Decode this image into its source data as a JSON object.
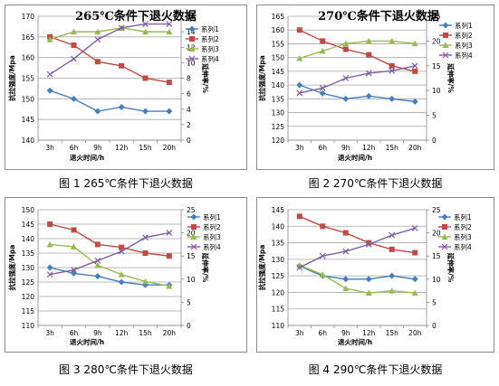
{
  "captions": [
    "图 1  265℃条件下退火数据",
    "图 2  270℃条件下退火数据",
    "图 3    280℃条件下退火数据",
    "图 4  290℃条件下退火数据"
  ],
  "colors": {
    "s1": "#4a7ebb",
    "s2": "#be4b48",
    "s3": "#98b954",
    "s4": "#7d60a0"
  },
  "chart_data": [
    {
      "type": "line",
      "title": "265℃条件下退火数据",
      "xlabel": "退火时间/h",
      "ylabel": "抗拉强度/Mpa",
      "y2label": "延伸率/%",
      "categories": [
        "3h",
        "6h",
        "9h",
        "12h",
        "15h",
        "20h"
      ],
      "ylim": [
        140,
        170
      ],
      "yticks": [
        140,
        145,
        150,
        155,
        160,
        165,
        170
      ],
      "y2lim": [
        0,
        16
      ],
      "y2ticks": [
        0,
        2,
        4,
        6,
        8,
        10,
        12,
        14,
        16
      ],
      "legend_position": "right",
      "series": [
        {
          "name": "系列1",
          "axis": "left",
          "values": [
            152,
            150,
            147,
            148,
            147,
            147
          ]
        },
        {
          "name": "系列2",
          "axis": "left",
          "values": [
            165,
            163,
            159,
            158,
            155,
            154
          ]
        },
        {
          "name": "系列3",
          "axis": "right",
          "values": [
            13,
            14,
            14,
            14.5,
            14,
            14
          ]
        },
        {
          "name": "系列4",
          "axis": "right",
          "values": [
            8.5,
            10.5,
            13,
            14.5,
            15,
            15
          ]
        }
      ]
    },
    {
      "type": "line",
      "title": "270℃条件下退火数据",
      "xlabel": "退火时间/h",
      "ylabel": "抗拉强度/Mpa",
      "y2label": "延伸率/%",
      "categories": [
        "3h",
        "6h",
        "9h",
        "12h",
        "15h",
        "20h"
      ],
      "ylim": [
        120,
        165
      ],
      "yticks": [
        120,
        125,
        130,
        135,
        140,
        145,
        150,
        155,
        160,
        165
      ],
      "y2lim": [
        0,
        25
      ],
      "y2ticks": [
        0,
        5,
        10,
        15,
        20,
        25
      ],
      "legend_position": "right",
      "series": [
        {
          "name": "系列1",
          "axis": "left",
          "values": [
            140,
            137,
            135,
            136,
            135,
            134
          ]
        },
        {
          "name": "系列2",
          "axis": "left",
          "values": [
            160,
            156,
            153,
            151,
            147,
            145
          ]
        },
        {
          "name": "系列3",
          "axis": "right",
          "values": [
            16.5,
            18,
            19.5,
            20,
            20,
            19.5
          ]
        },
        {
          "name": "系列4",
          "axis": "right",
          "values": [
            9.5,
            10.5,
            12.5,
            13.5,
            14,
            15
          ]
        }
      ]
    },
    {
      "type": "line",
      "title": "",
      "xlabel": "退火时间/h",
      "ylabel": "抗拉强度/Mpa",
      "y2label": "延伸率/%",
      "categories": [
        "3h",
        "6h",
        "9h",
        "12h",
        "15h",
        "20h"
      ],
      "ylim": [
        110,
        150
      ],
      "yticks": [
        110,
        115,
        120,
        125,
        130,
        135,
        140,
        145,
        150
      ],
      "y2lim": [
        0,
        25
      ],
      "y2ticks": [
        0,
        5,
        10,
        15,
        20,
        25
      ],
      "legend_position": "right",
      "series": [
        {
          "name": "系列1",
          "axis": "left",
          "values": [
            130,
            128,
            127,
            125,
            124,
            124
          ]
        },
        {
          "name": "系列2",
          "axis": "left",
          "values": [
            145,
            143,
            138,
            137,
            135,
            134
          ]
        },
        {
          "name": "系列3",
          "axis": "right",
          "values": [
            17.5,
            17,
            13,
            11,
            9.5,
            8.5
          ]
        },
        {
          "name": "系列4",
          "axis": "right",
          "values": [
            11,
            12,
            14,
            16,
            19,
            20
          ]
        }
      ]
    },
    {
      "type": "line",
      "title": "",
      "xlabel": "退火时间/h",
      "ylabel": "抗拉强度/Mpa",
      "y2label": "延伸率/%",
      "categories": [
        "3h",
        "6h",
        "9h",
        "12h",
        "15h",
        "20h"
      ],
      "ylim": [
        110,
        145
      ],
      "yticks": [
        110,
        115,
        120,
        125,
        130,
        135,
        140,
        145
      ],
      "y2lim": [
        0,
        25
      ],
      "y2ticks": [
        0,
        5,
        10,
        15,
        20,
        25
      ],
      "legend_position": "right",
      "series": [
        {
          "name": "系列1",
          "axis": "left",
          "values": [
            128,
            125,
            124,
            124,
            125,
            124
          ]
        },
        {
          "name": "系列2",
          "axis": "left",
          "values": [
            143,
            140,
            138,
            135,
            133,
            132
          ]
        },
        {
          "name": "系列3",
          "axis": "right",
          "values": [
            13,
            11,
            8,
            7,
            7.5,
            7
          ]
        },
        {
          "name": "系列4",
          "axis": "right",
          "values": [
            12.5,
            15,
            16,
            17.5,
            19.5,
            21
          ]
        }
      ]
    }
  ]
}
